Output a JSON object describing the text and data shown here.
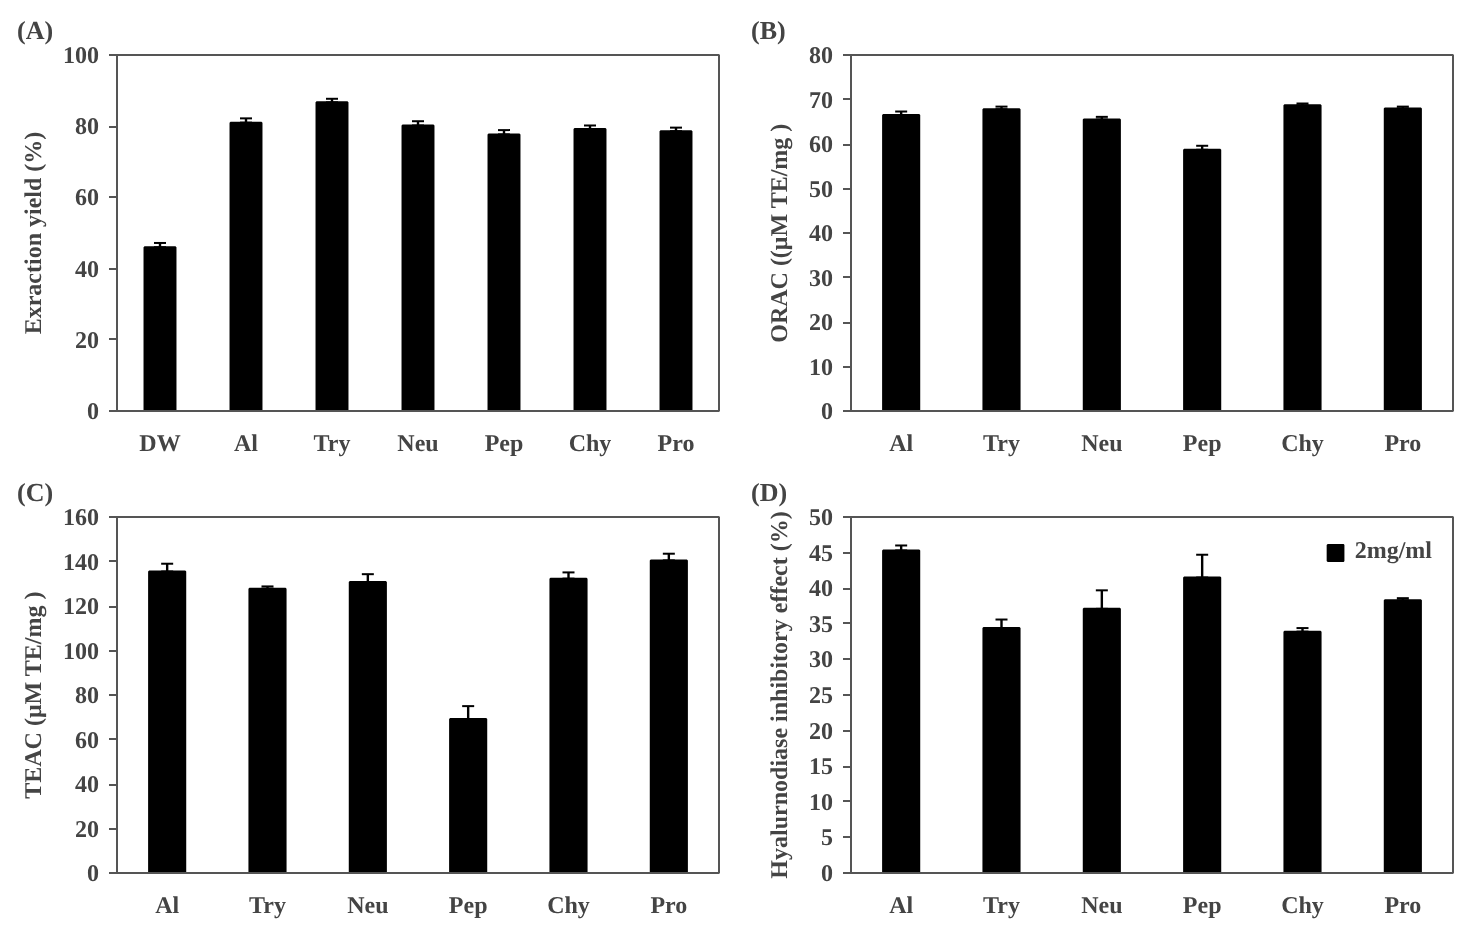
{
  "chart_data": [
    {
      "type": "bar",
      "title": "(A)",
      "ylabel": "Exraction yield (%)",
      "categories": [
        "DW",
        "Al",
        "Try",
        "Neu",
        "Pep",
        "Chy",
        "Pro"
      ],
      "color": "#000000",
      "values": [
        46,
        81,
        86.7,
        80.2,
        77.7,
        79.2,
        78.6
      ],
      "errors": [
        [
          46,
          47.2
        ],
        [
          81,
          82.2
        ],
        [
          86.7,
          87.7
        ],
        [
          80.2,
          81.4
        ],
        [
          77.7,
          78.9
        ],
        [
          79.2,
          80.2
        ],
        [
          78.6,
          79.6
        ]
      ],
      "ylim": [
        0,
        100
      ],
      "yticks": [
        0,
        20,
        40,
        60,
        80,
        100
      ],
      "grid": false
    },
    {
      "type": "bar",
      "title": "(B)",
      "ylabel": "ORAC ((μM TE/mg )",
      "categories": [
        "Al",
        "Try",
        "Neu",
        "Pep",
        "Chy",
        "Pro"
      ],
      "color": "#000000",
      "values": [
        66.5,
        67.8,
        65.5,
        58.7,
        68.7,
        68
      ],
      "errors": [
        [
          66.5,
          67.3
        ],
        [
          67.8,
          68.4
        ],
        [
          65.5,
          66.1
        ],
        [
          58.7,
          59.6
        ],
        [
          68.7,
          69.1
        ],
        [
          68,
          68.4
        ]
      ],
      "ylim": [
        0,
        80
      ],
      "yticks": [
        0,
        10,
        20,
        30,
        40,
        50,
        60,
        70,
        80
      ],
      "grid": false
    },
    {
      "type": "bar",
      "title": "(C)",
      "ylabel": "TEAC (μM TE/mg )",
      "categories": [
        "Al",
        "Try",
        "Neu",
        "Pep",
        "Chy",
        "Pro"
      ],
      "color": "#000000",
      "values": [
        135.5,
        127.8,
        130.8,
        69.2,
        132.3,
        140.5
      ],
      "errors": [
        [
          135.5,
          139
        ],
        [
          127.8,
          128.8
        ],
        [
          130.8,
          134.3
        ],
        [
          69.2,
          75
        ],
        [
          132.3,
          135.1
        ],
        [
          140.5,
          143.5
        ]
      ],
      "ylim": [
        0,
        160
      ],
      "yticks": [
        0,
        20,
        40,
        60,
        80,
        100,
        120,
        140,
        160
      ],
      "grid": false
    },
    {
      "type": "bar",
      "title": "(D)",
      "ylabel": "Hyalurnodiase inhibitory effect (%)",
      "categories": [
        "Al",
        "Try",
        "Neu",
        "Pep",
        "Chy",
        "Pro"
      ],
      "series": [
        {
          "name": "2mg/ml",
          "color": "#000000",
          "values": [
            45.3,
            34.4,
            37.1,
            41.5,
            33.9,
            38.3
          ],
          "errors": [
            [
              45.3,
              46
            ],
            [
              34.4,
              35.6
            ],
            [
              37.1,
              39.7
            ],
            [
              41.5,
              44.7
            ],
            [
              33.9,
              34.4
            ],
            [
              38.3,
              38.6
            ]
          ]
        }
      ],
      "ylim": [
        0,
        50
      ],
      "yticks": [
        0,
        5,
        10,
        15,
        20,
        25,
        30,
        35,
        40,
        45,
        50
      ],
      "grid": false,
      "legend": "top right"
    }
  ]
}
